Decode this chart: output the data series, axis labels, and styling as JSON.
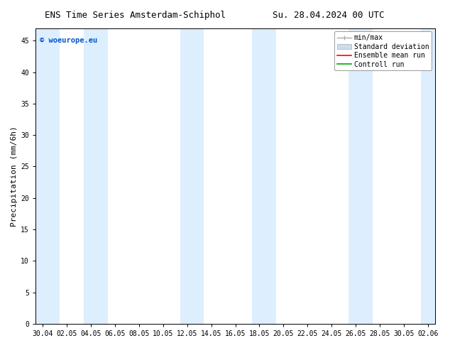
{
  "title_left": "ENS Time Series Amsterdam-Schiphol",
  "title_right": "Su. 28.04.2024 00 UTC",
  "ylabel": "Precipitation (mm/6h)",
  "xlabel_ticks": [
    "30.04",
    "02.05",
    "04.05",
    "06.05",
    "08.05",
    "10.05",
    "12.05",
    "14.05",
    "16.05",
    "18.05",
    "20.05",
    "22.05",
    "24.05",
    "26.05",
    "28.05",
    "30.05",
    "02.06"
  ],
  "ylim": [
    0,
    47
  ],
  "yticks": [
    0,
    5,
    10,
    15,
    20,
    25,
    30,
    35,
    40,
    45
  ],
  "background_color": "#ffffff",
  "plot_bg_color": "#ffffff",
  "shade_color": "#ddeeff",
  "watermark": "© woeurope.eu",
  "watermark_color": "#0055cc",
  "legend_items": [
    {
      "label": "min/max",
      "color": "#aaaaaa"
    },
    {
      "label": "Standard deviation",
      "color": "#ccddf0"
    },
    {
      "label": "Ensemble mean run",
      "color": "#ff0000"
    },
    {
      "label": "Controll run",
      "color": "#00aa00"
    }
  ],
  "title_fontsize": 9,
  "tick_fontsize": 7,
  "label_fontsize": 8,
  "legend_fontsize": 7
}
